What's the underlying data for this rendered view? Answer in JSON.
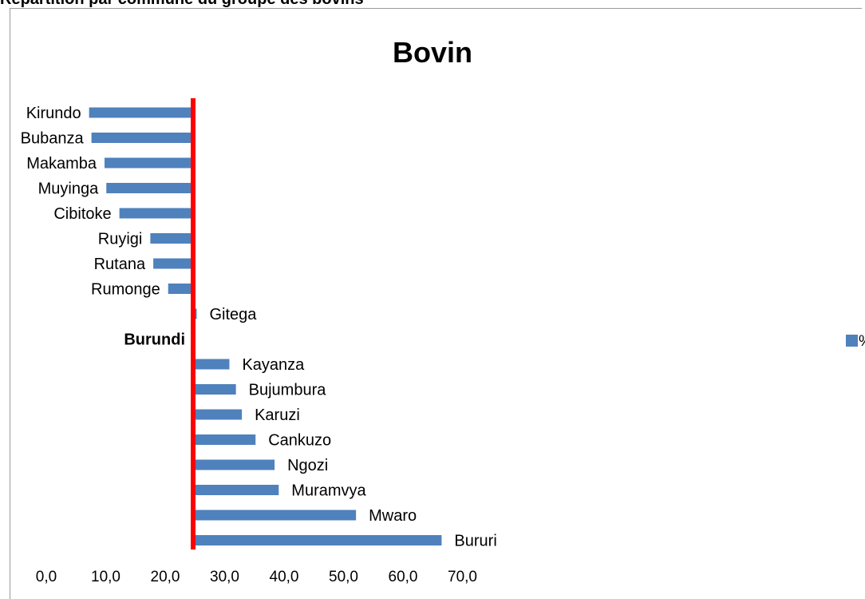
{
  "header": {
    "text": "Répartition par commune du groupe des bovins"
  },
  "chart_data": {
    "type": "bar",
    "orientation": "horizontal",
    "title": "Bovin",
    "xlabel": "",
    "ylabel": "",
    "xlim": [
      0,
      70
    ],
    "x_ticks": [
      "0,0",
      "10,0",
      "20,0",
      "30,0",
      "40,0",
      "50,0",
      "60,0",
      "70,0"
    ],
    "reference_line": {
      "label": "Burundi",
      "value": 24.7,
      "color": "#ff0000"
    },
    "categories": [
      "Kirundo",
      "Bubanza",
      "Makamba",
      "Muyinga",
      "Cibitoke",
      "Ruyigi",
      "Rutana",
      "Rumonge",
      "Gitega",
      "Burundi",
      "Kayanza",
      "Bujumbura",
      "Karuzi",
      "Cankuzo",
      "Ngozi",
      "Muramvya",
      "Mwaro",
      "Bururi"
    ],
    "series": [
      {
        "name": "%",
        "color": "#4f81bd",
        "values": [
          7.2,
          7.6,
          9.8,
          10.1,
          12.3,
          17.5,
          18.0,
          20.5,
          25.3,
          24.7,
          30.8,
          31.9,
          32.9,
          35.2,
          38.4,
          39.1,
          52.1,
          66.5
        ]
      }
    ],
    "legend": {
      "position": "right",
      "entries": [
        "%"
      ]
    },
    "grid": false
  }
}
